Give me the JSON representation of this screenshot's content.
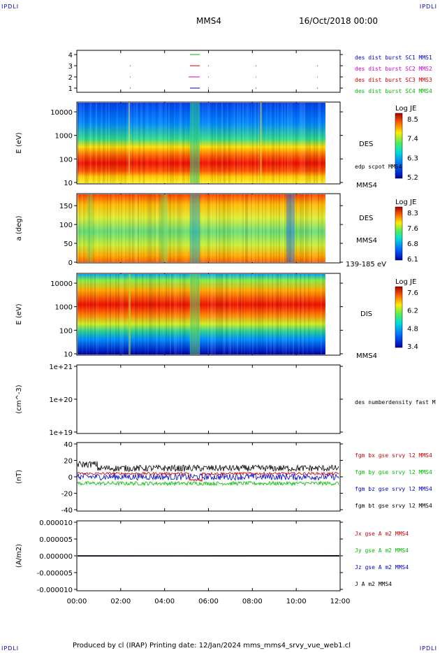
{
  "header": {
    "corner_tl": "IPDLI",
    "corner_tr": "IPDLI",
    "corner_bl": "IPDLI",
    "corner_br": "IPDLI",
    "spacecraft": "MMS4",
    "date": "16/Oct/2018 00:00"
  },
  "footer": {
    "text": "Produced by cl (IRAP)   Printing date: 12/Jan/2024   mms_mms4_srvy_vue_web1.cl"
  },
  "colors": {
    "red": "#cc0000",
    "green": "#00bb00",
    "blue": "#0000cc",
    "magenta": "#cc00cc",
    "black": "#000000"
  },
  "chart_data": [
    {
      "type": "scatter",
      "title": "",
      "y_ticks": [
        "4",
        "3",
        "2",
        "1"
      ],
      "legend": [
        {
          "label": "des dist burst SC1 MMS1",
          "color": "#0000cc"
        },
        {
          "label": "des dist burst SC2 MMS2",
          "color": "#cc00cc"
        },
        {
          "label": "des dist burst SC3 MMS3",
          "color": "#cc0000"
        },
        {
          "label": "des dist burst SC4 MMS4",
          "color": "#00bb00"
        }
      ]
    },
    {
      "type": "heatmap",
      "ylabel": "E (eV)",
      "yscale": "log",
      "y_ticks": [
        "10000",
        "1000",
        "100",
        "10"
      ],
      "side_label": "DES",
      "side_note": "edp scpot MMS4",
      "bottom_label": "MMS4",
      "colorbar": {
        "title": "Log JE",
        "ticks": [
          "8.5",
          "7.4",
          "6.3",
          "5.2"
        ]
      }
    },
    {
      "type": "heatmap",
      "ylabel": "a (deg)",
      "y_ticks": [
        "150",
        "100",
        "50",
        "0"
      ],
      "side_label": "DES",
      "side_sub": "MMS4",
      "bottom_label": "139-185 eV",
      "colorbar": {
        "title": "Log JE",
        "ticks": [
          "8.3",
          "7.6",
          "6.8",
          "6.1"
        ]
      }
    },
    {
      "type": "heatmap",
      "ylabel": "E (eV)",
      "yscale": "log",
      "y_ticks": [
        "10000",
        "1000",
        "100",
        "10"
      ],
      "side_label": "DIS",
      "bottom_label": "MMS4",
      "colorbar": {
        "title": "Log JE",
        "ticks": [
          "7.6",
          "6.2",
          "4.8",
          "3.4"
        ]
      }
    },
    {
      "type": "line",
      "ylabel": "(cm^-3)",
      "y_ticks": [
        "1e+21",
        "1e+20",
        "1e+19"
      ],
      "legend": [
        {
          "label": "des numberdensity fast M",
          "color": "#000000"
        }
      ]
    },
    {
      "type": "line",
      "ylabel": "(nT)",
      "y_ticks": [
        "40",
        "20",
        "0",
        "-20",
        "-40"
      ],
      "ylim": [
        -50,
        50
      ],
      "legend": [
        {
          "label": "fgm bx gse srvy l2 MMS4",
          "color": "#cc0000"
        },
        {
          "label": "fgm by gse srvy l2 MMS4",
          "color": "#00bb00"
        },
        {
          "label": "fgm bz gse srvy l2 MMS4",
          "color": "#0000cc"
        },
        {
          "label": "fgm bt gse srvy l2 MMS4",
          "color": "#000000"
        }
      ],
      "series_mean": {
        "bx": 5,
        "by": -10,
        "bz": 0,
        "bt": 13
      }
    },
    {
      "type": "line",
      "ylabel": "(A/m2)",
      "y_ticks": [
        "0.000010",
        "0.000005",
        "0.000000",
        "-0.000005",
        "-0.000010"
      ],
      "ylim": [
        -1e-05,
        1e-05
      ],
      "legend": [
        {
          "label": "Jx gse A m2 MMS4",
          "color": "#cc0000"
        },
        {
          "label": "Jy gse A m2 MMS4",
          "color": "#00bb00"
        },
        {
          "label": "Jz gse A m2 MMS4",
          "color": "#0000cc"
        },
        {
          "label": "J A m2 MMS4",
          "color": "#000000"
        }
      ]
    }
  ],
  "x_ticks": [
    "00:00",
    "02:00",
    "04:00",
    "06:00",
    "08:00",
    "10:00",
    "12:00"
  ]
}
